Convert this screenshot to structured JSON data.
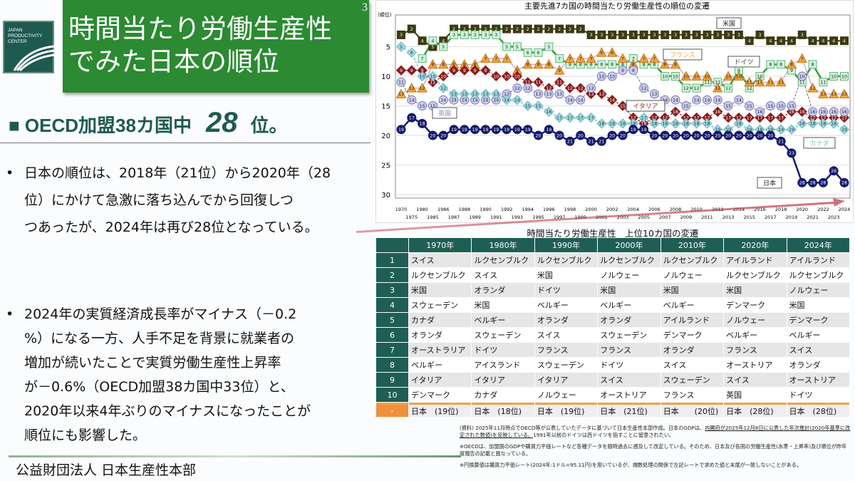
{
  "logo": {
    "text": "JAPAN PRODUCTIVITY CENTER"
  },
  "header": {
    "title_line1": "時間当たり労働生産性",
    "title_line2": "でみた日本の順位",
    "page_number": "3"
  },
  "headline": {
    "prefix": "■ OECD加盟38カ国中",
    "rank": "28",
    "suffix": "位。"
  },
  "bullets": [
    {
      "marker": "•",
      "lines": [
        "日本の順位は、2018年（21位）から2020年（28",
        "位）にかけて急激に落ち込んでから回復しつ",
        "つあったが、2024年は再び28位となっている。"
      ]
    },
    {
      "marker": "•",
      "lines": [
        "2024年の実質経済成長率がマイナス（－0.2",
        "%）になる一方、人手不足を背景に就業者の",
        "増加が続いたことで実質労働生産性上昇率",
        "が－0.6%（OECD加盟38カ国中33位）と、",
        "2020年以来4年ぶりのマイナスになったことが",
        "順位にも影響した。"
      ]
    }
  ],
  "footer": {
    "organization": "公益財団法人 日本生産性本部"
  },
  "colors": {
    "title_green": "#2b8a32",
    "table_header": "#1f5e55",
    "japan_highlight": "#f0903a"
  },
  "chart_data": {
    "type": "line",
    "title": "主要先進7カ国の時間当たり労働生産性の順位の変遷",
    "ylabel": "(順位)",
    "ylim": [
      0,
      30
    ],
    "y_inverted": true,
    "yticks": [
      5,
      10,
      15,
      20,
      25,
      30
    ],
    "grid": true,
    "categories": [
      1970,
      1975,
      1980,
      1985,
      1986,
      1987,
      1988,
      1989,
      1990,
      1991,
      1992,
      1993,
      1994,
      1995,
      1996,
      1997,
      1998,
      1999,
      2000,
      2001,
      2002,
      2003,
      2004,
      2005,
      2006,
      2007,
      2008,
      2009,
      2010,
      2011,
      2012,
      2013,
      2014,
      2015,
      2016,
      2017,
      2018,
      2019,
      2020,
      2021,
      2022,
      2023,
      2024
    ],
    "series": [
      {
        "name": "米国",
        "marker": "square",
        "color": "#3b3a12",
        "values": [
          3,
          2,
          4,
          5,
          4,
          2,
          2,
          2,
          2,
          2,
          2,
          2,
          2,
          2,
          2,
          2,
          2,
          2,
          3,
          3,
          3,
          3,
          3,
          3,
          3,
          3,
          3,
          3,
          3,
          3,
          3,
          3,
          3,
          4,
          3,
          4,
          4,
          4,
          3,
          4,
          4,
          4,
          4
        ]
      },
      {
        "name": "ドイツ",
        "marker": "square-light",
        "color": "#3f9a35",
        "values": [
          null,
          null,
          7,
          4,
          5,
          3,
          3,
          3,
          3,
          3,
          5,
          5,
          6,
          6,
          5,
          7,
          8,
          8,
          8,
          8,
          8,
          8,
          7,
          8,
          8,
          10,
          10,
          12,
          12,
          11,
          11,
          12,
          9,
          12,
          10,
          8,
          8,
          9,
          11,
          8,
          11,
          10,
          10
        ]
      },
      {
        "name": "フランス",
        "marker": "triangle",
        "color": "#f2a33a",
        "values": [
          13,
          12,
          12,
          8,
          8,
          8,
          8,
          8,
          7,
          7,
          7,
          9,
          8,
          8,
          8,
          9,
          7,
          7,
          7,
          6,
          6,
          7,
          8,
          7,
          7,
          8,
          8,
          10,
          10,
          10,
          12,
          10,
          10,
          11,
          11,
          11,
          11,
          8,
          7,
          12,
          13,
          13,
          13
        ]
      },
      {
        "name": "イタリア",
        "marker": "diamond",
        "color": "#8c1c1c",
        "values": [
          9,
          9,
          9,
          11,
          10,
          9,
          9,
          9,
          9,
          10,
          10,
          10,
          11,
          11,
          12,
          11,
          12,
          12,
          13,
          13,
          14,
          15,
          17,
          18,
          17,
          17,
          16,
          17,
          17,
          17,
          16,
          17,
          17,
          17,
          17,
          17,
          17,
          16,
          16,
          17,
          17,
          17,
          17
        ]
      },
      {
        "name": "英国",
        "marker": "circle-light",
        "color": "#8a86c0",
        "values": [
          11,
          14,
          15,
          15,
          14,
          14,
          14,
          14,
          14,
          14,
          13,
          12,
          12,
          13,
          13,
          13,
          14,
          14,
          12,
          10,
          10,
          9,
          9,
          12,
          13,
          14,
          14,
          15,
          14,
          14,
          14,
          15,
          14,
          15,
          16,
          15,
          15,
          15,
          10,
          16,
          16,
          16,
          16
        ]
      },
      {
        "name": "カナダ",
        "marker": "diamond-light",
        "color": "#7cc4cc",
        "values": [
          5,
          6,
          10,
          10,
          12,
          13,
          13,
          13,
          13,
          13,
          14,
          14,
          15,
          15,
          16,
          17,
          17,
          17,
          17,
          18,
          18,
          18,
          18,
          17,
          18,
          18,
          18,
          18,
          18,
          18,
          19,
          19,
          18,
          19,
          19,
          19,
          19,
          19,
          18,
          18,
          18,
          18,
          19
        ]
      },
      {
        "name": "日本",
        "marker": "circle",
        "color": "#141a6e",
        "values": [
          19,
          17,
          18,
          20,
          20,
          19,
          19,
          19,
          19,
          19,
          19,
          19,
          19,
          20,
          19,
          20,
          21,
          20,
          21,
          21,
          20,
          20,
          19,
          19,
          20,
          20,
          20,
          20,
          20,
          20,
          20,
          20,
          20,
          20,
          20,
          20,
          21,
          23,
          28,
          28,
          28,
          26,
          28
        ]
      }
    ]
  },
  "table": {
    "title": "時間当たり労働生産性　上位10カ国の変遷",
    "columns": [
      "",
      "1970年",
      "1980年",
      "1990年",
      "2000年",
      "2010年",
      "2020年",
      "2024年"
    ],
    "rows": [
      {
        "rank": "1",
        "cells": [
          "スイス",
          "ルクセンブルク",
          "ルクセンブルク",
          "ルクセンブルク",
          "ルクセンブルク",
          "アイルランド",
          "アイルランド"
        ]
      },
      {
        "rank": "2",
        "cells": [
          "ルクセンブルク",
          "スイス",
          "米国",
          "ノルウェー",
          "ノルウェー",
          "ルクセンブルク",
          "ルクセンブルク"
        ]
      },
      {
        "rank": "3",
        "cells": [
          "米国",
          "オランダ",
          "ドイツ",
          "米国",
          "米国",
          "米国",
          "ノルウェー"
        ]
      },
      {
        "rank": "4",
        "cells": [
          "スウェーデン",
          "米国",
          "ベルギー",
          "ベルギー",
          "ベルギー",
          "デンマーク",
          "米国"
        ]
      },
      {
        "rank": "5",
        "cells": [
          "カナダ",
          "ベルギー",
          "オランダ",
          "オランダ",
          "アイルランド",
          "ノルウェー",
          "デンマーク"
        ]
      },
      {
        "rank": "6",
        "cells": [
          "オランダ",
          "スウェーデン",
          "スイス",
          "スウェーデン",
          "デンマーク",
          "ベルギー",
          "ベルギー"
        ]
      },
      {
        "rank": "7",
        "cells": [
          "オーストラリア",
          "ドイツ",
          "フランス",
          "フランス",
          "オランダ",
          "フランス",
          "スイス"
        ]
      },
      {
        "rank": "8",
        "cells": [
          "ベルギー",
          "アイスランド",
          "スウェーデン",
          "ドイツ",
          "スイス",
          "オーストリア",
          "オランダ"
        ]
      },
      {
        "rank": "9",
        "cells": [
          "イタリア",
          "イタリア",
          "イタリア",
          "スイス",
          "スウェーデン",
          "スイス",
          "オーストリア"
        ]
      },
      {
        "rank": "10",
        "cells": [
          "デンマーク",
          "カナダ",
          "ノルウェー",
          "オーストリア",
          "フランス",
          "英国",
          "ドイツ"
        ]
      }
    ],
    "japan_row": {
      "rank": "-",
      "cells": [
        "日本　(19位)",
        "日本　(18位)",
        "日本　(19位)",
        "日本　(21位)",
        "日本　　(20位)",
        "日本　(28位)",
        "日本　(28位)"
      ]
    }
  },
  "notes": {
    "source_prefix": "(資料) 2025年11月時点でOECD等が公表していたデータに基づいて日本生産性本部作成。日本のGDPは、",
    "source_underlined": "内閣府が2025年12月8日に公表した年次推計(2020年基準に改定された数値)を反映している。",
    "source_suffix": "1991年以前のドイツは西ドイツを指すことに留意されたい。",
    "note1": "※OECDは、加盟国のGDPや購買力平価レートなど各種データを随時過去に遡及して改定している。そのため、日本及び各国の労働生産性(水準・上昇率)及び順位が昨年度報告の記載と異なっている。",
    "note2": "※円換算値は購買力平価レート(2024年:1ドル=95.11円)を用いているが、端数処理の関係で左記レートで求めた値と末尾が一致しないことがある。"
  }
}
